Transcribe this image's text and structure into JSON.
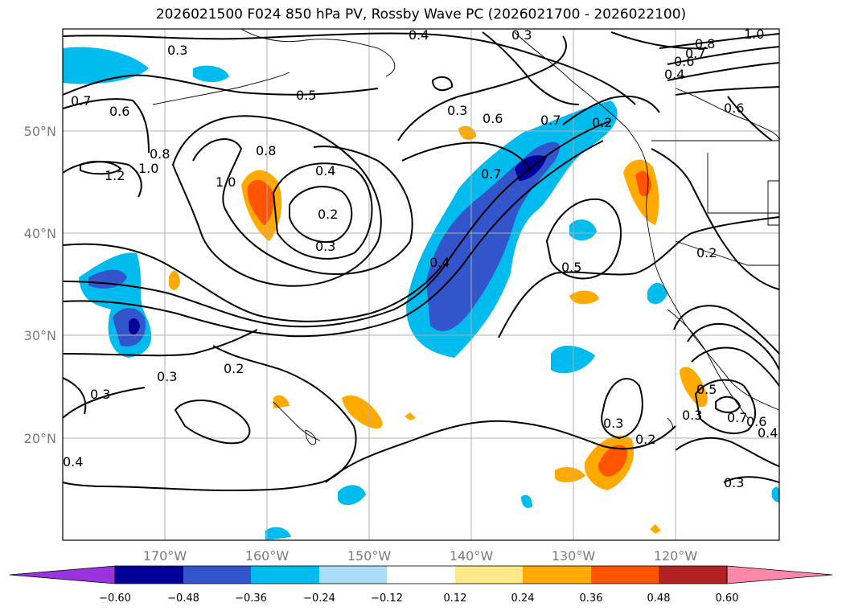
{
  "title": "2026021500 F024 850 hPa PV, Rossby Wave PC (2026021700 - 2026022100)",
  "colors": {
    "grid": "#b0b0b0",
    "contour": "#000000",
    "land": "#000000",
    "cb": [
      "#9933dd",
      "#000099",
      "#3355cc",
      "#00bbee",
      "#aaddf7",
      "#ffffff",
      "#ffe88a",
      "#ffaa00",
      "#ff5500",
      "#b22222",
      "#ff88aa"
    ]
  },
  "map": {
    "lat_labels": [
      "50°N",
      "40°N",
      "30°N",
      "20°N"
    ],
    "lon_labels": [
      "170°W",
      "160°W",
      "150°W",
      "140°W",
      "130°W",
      "120°W"
    ]
  },
  "contour_labels": [
    {
      "text": "0.3"
    },
    {
      "text": "0.4"
    },
    {
      "text": "0.3"
    },
    {
      "text": "1.0"
    },
    {
      "text": "0.8"
    },
    {
      "text": "0.7"
    },
    {
      "text": "0.6"
    },
    {
      "text": "0.4"
    },
    {
      "text": "0.7"
    },
    {
      "text": "0.6"
    },
    {
      "text": "0.5"
    },
    {
      "text": "0.3"
    },
    {
      "text": "0.6"
    },
    {
      "text": "0.7"
    },
    {
      "text": "1.2"
    },
    {
      "text": "1.0"
    },
    {
      "text": "0.8"
    },
    {
      "text": "0.8"
    },
    {
      "text": "1.0"
    },
    {
      "text": "0.4"
    },
    {
      "text": "0.2"
    },
    {
      "text": "0.3"
    },
    {
      "text": "0.7"
    },
    {
      "text": "0.2"
    },
    {
      "text": "0.4"
    },
    {
      "text": "0.5"
    },
    {
      "text": "0.3"
    },
    {
      "text": "0.2"
    },
    {
      "text": "0.3"
    },
    {
      "text": "0.3"
    },
    {
      "text": "0.2"
    },
    {
      "text": "0.5"
    },
    {
      "text": "0.3"
    },
    {
      "text": "0.7"
    },
    {
      "text": "0.6"
    },
    {
      "text": "0.4"
    },
    {
      "text": "0.3"
    },
    {
      "text": "0.2"
    },
    {
      "text": "0.6"
    },
    {
      "text": "0.4"
    }
  ],
  "colorbar": {
    "ticks": [
      "−0.60",
      "−0.48",
      "−0.36",
      "−0.24",
      "−0.12",
      "0.12",
      "0.24",
      "0.36",
      "0.48",
      "0.60"
    ]
  }
}
